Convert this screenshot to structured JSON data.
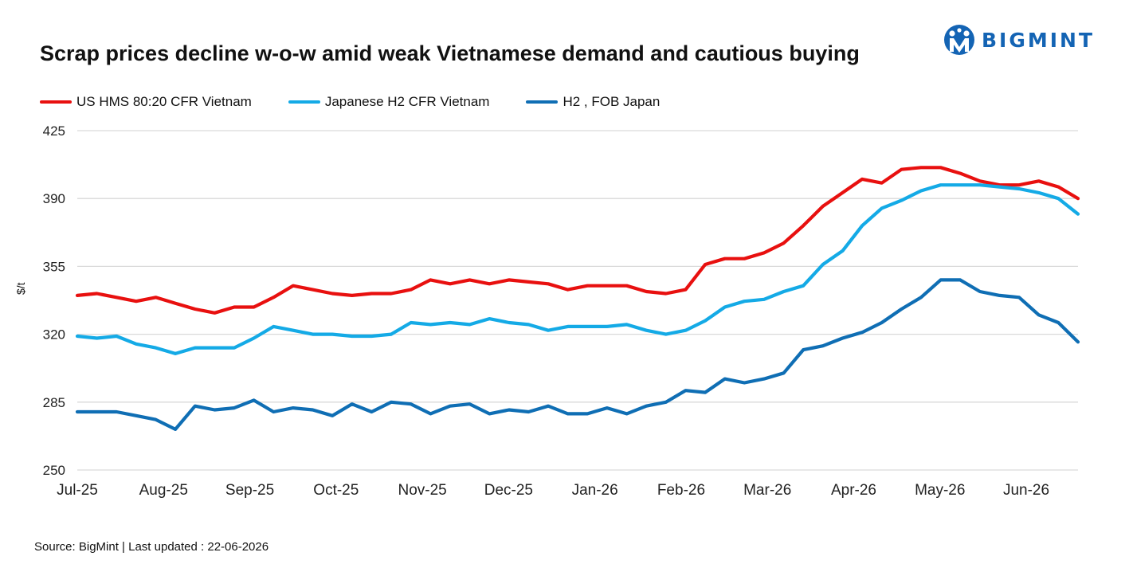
{
  "title": "Scrap prices decline w-o-w amid weak Vietnamese demand and cautious buying",
  "logo": {
    "text": "BIGMINT",
    "color": "#1464b4"
  },
  "source": "Source: BigMint  | Last updated : 22-06-2026",
  "chart_data": {
    "type": "line",
    "title": "Scrap prices decline w-o-w amid weak Vietnamese demand and cautious buying",
    "xlabel": "",
    "ylabel": "$/t",
    "ylim": [
      250,
      425
    ],
    "yticks": [
      250,
      285,
      320,
      355,
      390,
      425
    ],
    "xticks": [
      "Jul-25",
      "Aug-25",
      "Sep-25",
      "Oct-25",
      "Nov-25",
      "Dec-25",
      "Jan-26",
      "Feb-26",
      "Mar-26",
      "Apr-26",
      "May-26",
      "Jun-26"
    ],
    "grid": true,
    "legend_position": "top-left",
    "x": [
      0,
      1,
      2,
      3,
      4,
      5,
      6,
      7,
      8,
      9,
      10,
      11,
      12,
      13,
      14,
      15,
      16,
      17,
      18,
      19,
      20,
      21,
      22,
      23,
      24,
      25,
      26,
      27,
      28,
      29,
      30,
      31,
      32,
      33,
      34,
      35,
      36,
      37,
      38,
      39,
      40,
      41,
      42,
      43,
      44,
      45,
      46,
      47,
      48,
      49,
      50,
      51
    ],
    "series": [
      {
        "name": "US HMS 80:20 CFR Vietnam",
        "color": "#e8100f",
        "values": [
          340,
          341,
          339,
          337,
          339,
          336,
          333,
          331,
          334,
          334,
          339,
          345,
          343,
          341,
          340,
          341,
          341,
          343,
          348,
          346,
          348,
          346,
          348,
          347,
          346,
          343,
          345,
          345,
          345,
          342,
          341,
          343,
          356,
          359,
          359,
          362,
          367,
          376,
          386,
          393,
          400,
          398,
          405,
          406,
          406,
          403,
          399,
          397,
          397,
          399,
          396,
          390
        ]
      },
      {
        "name": "Japanese H2 CFR Vietnam",
        "color": "#14aae6",
        "values": [
          319,
          318,
          319,
          315,
          313,
          310,
          313,
          313,
          313,
          318,
          324,
          322,
          320,
          320,
          319,
          319,
          320,
          326,
          325,
          326,
          325,
          328,
          326,
          325,
          322,
          324,
          324,
          324,
          325,
          322,
          320,
          322,
          327,
          334,
          337,
          338,
          342,
          345,
          356,
          363,
          376,
          385,
          389,
          394,
          397,
          397,
          397,
          396,
          395,
          393,
          390,
          382
        ]
      },
      {
        "name": "H2 , FOB Japan",
        "color": "#0f6eb4",
        "values": [
          280,
          280,
          280,
          278,
          276,
          271,
          283,
          281,
          282,
          286,
          280,
          282,
          281,
          278,
          284,
          280,
          285,
          284,
          279,
          283,
          284,
          279,
          281,
          280,
          283,
          279,
          279,
          282,
          279,
          283,
          285,
          291,
          290,
          297,
          295,
          297,
          300,
          312,
          314,
          318,
          321,
          326,
          333,
          339,
          348,
          348,
          342,
          340,
          339,
          330,
          326,
          316
        ]
      }
    ]
  }
}
